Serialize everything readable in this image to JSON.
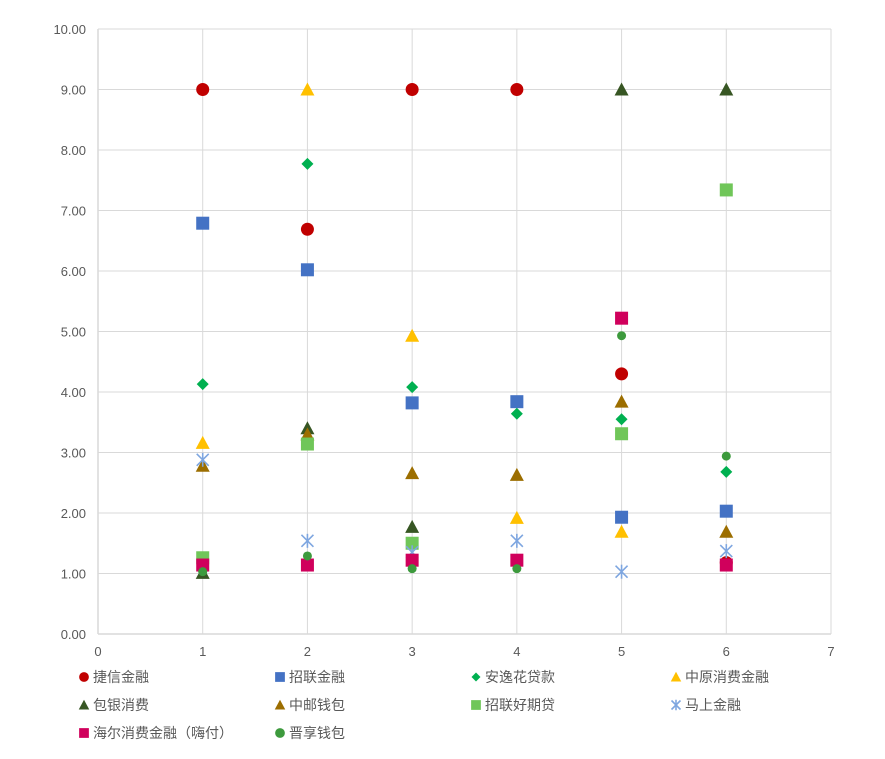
{
  "chart_data": {
    "type": "scatter",
    "title": "",
    "xlabel": "",
    "ylabel": "",
    "xlim": [
      0,
      7
    ],
    "ylim": [
      0,
      10
    ],
    "x_ticks": [
      "0",
      "1",
      "2",
      "3",
      "4",
      "5",
      "6",
      "7"
    ],
    "y_ticks": [
      "0.00",
      "1.00",
      "2.00",
      "3.00",
      "4.00",
      "5.00",
      "6.00",
      "7.00",
      "8.00",
      "9.00",
      "10.00"
    ],
    "grid": true,
    "legend_position": "bottom",
    "x": [
      1,
      2,
      3,
      4,
      5,
      6
    ],
    "series": [
      {
        "name": "捷信金融",
        "marker": "circle",
        "color": "#C00000",
        "values": [
          9.0,
          6.69,
          9.0,
          9.0,
          4.3,
          1.18
        ]
      },
      {
        "name": "招联金融",
        "marker": "square",
        "color": "#4472C4",
        "values": [
          6.79,
          6.02,
          3.82,
          3.84,
          1.93,
          2.03
        ]
      },
      {
        "name": "安逸花贷款",
        "marker": "diamond",
        "color": "#00B050",
        "values": [
          4.13,
          7.77,
          4.08,
          3.64,
          3.55,
          2.68
        ]
      },
      {
        "name": "中原消费金融",
        "marker": "triangle",
        "color": "#FFC000",
        "values": [
          3.16,
          9.0,
          4.93,
          1.92,
          1.69,
          null
        ]
      },
      {
        "name": "包银消费",
        "marker": "triangle",
        "color": "#375623",
        "values": [
          1.01,
          3.4,
          1.77,
          null,
          9.0,
          9.0
        ]
      },
      {
        "name": "中邮钱包",
        "marker": "triangle",
        "color": "#9C6E00",
        "values": [
          2.78,
          3.3,
          2.66,
          2.63,
          3.84,
          1.69
        ]
      },
      {
        "name": "招联好期贷",
        "marker": "square",
        "color": "#70C659",
        "values": [
          1.26,
          3.14,
          1.5,
          null,
          3.31,
          7.34
        ]
      },
      {
        "name": "马上金融",
        "marker": "star",
        "color": "#7EA6E0",
        "values": [
          2.88,
          1.54,
          1.35,
          1.54,
          1.03,
          1.37
        ]
      },
      {
        "name": "海尔消费金融（嗨付）",
        "marker": "square",
        "color": "#D0005C",
        "values": [
          1.14,
          1.14,
          1.22,
          1.22,
          5.22,
          1.14
        ]
      },
      {
        "name": "晋享钱包",
        "marker": "circle-small",
        "color": "#3D9A3D",
        "values": [
          1.03,
          1.29,
          1.08,
          1.08,
          4.93,
          2.94
        ]
      }
    ]
  }
}
